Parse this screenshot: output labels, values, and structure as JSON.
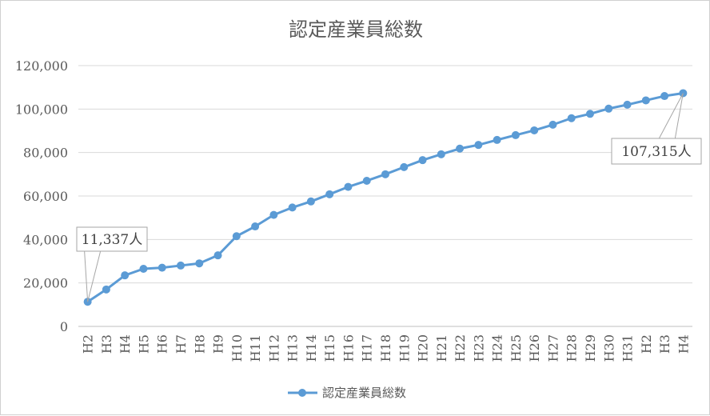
{
  "chart_data": {
    "type": "line",
    "title": "認定産業員総数",
    "categories": [
      "H2",
      "H3",
      "H4",
      "H5",
      "H6",
      "H7",
      "H8",
      "H9",
      "H10",
      "H11",
      "H12",
      "H13",
      "H14",
      "H15",
      "H16",
      "H17",
      "H18",
      "H19",
      "H20",
      "H21",
      "H22",
      "H23",
      "H24",
      "H25",
      "H26",
      "H27",
      "H28",
      "H29",
      "H30",
      "H31",
      "H2",
      "H3",
      "H4"
    ],
    "series": [
      {
        "name": "認定産業員総数",
        "color": "#5b9bd5",
        "values": [
          11337,
          17000,
          23500,
          26500,
          27000,
          28000,
          29000,
          32700,
          41500,
          46000,
          51300,
          54700,
          57500,
          60800,
          64200,
          67000,
          70000,
          73300,
          76500,
          79200,
          81800,
          83500,
          85800,
          88000,
          90200,
          92800,
          95800,
          97800,
          100200,
          102000,
          104000,
          106000,
          107315
        ]
      }
    ],
    "y_ticks": [
      "0",
      "20,000",
      "40,000",
      "60,000",
      "80,000",
      "100,000",
      "120,000"
    ],
    "ylim": [
      0,
      120000
    ],
    "grid": true,
    "legend_position": "bottom",
    "annotations": [
      {
        "index": 0,
        "label": "11,337人"
      },
      {
        "index": 32,
        "label": "107,315人"
      }
    ]
  }
}
